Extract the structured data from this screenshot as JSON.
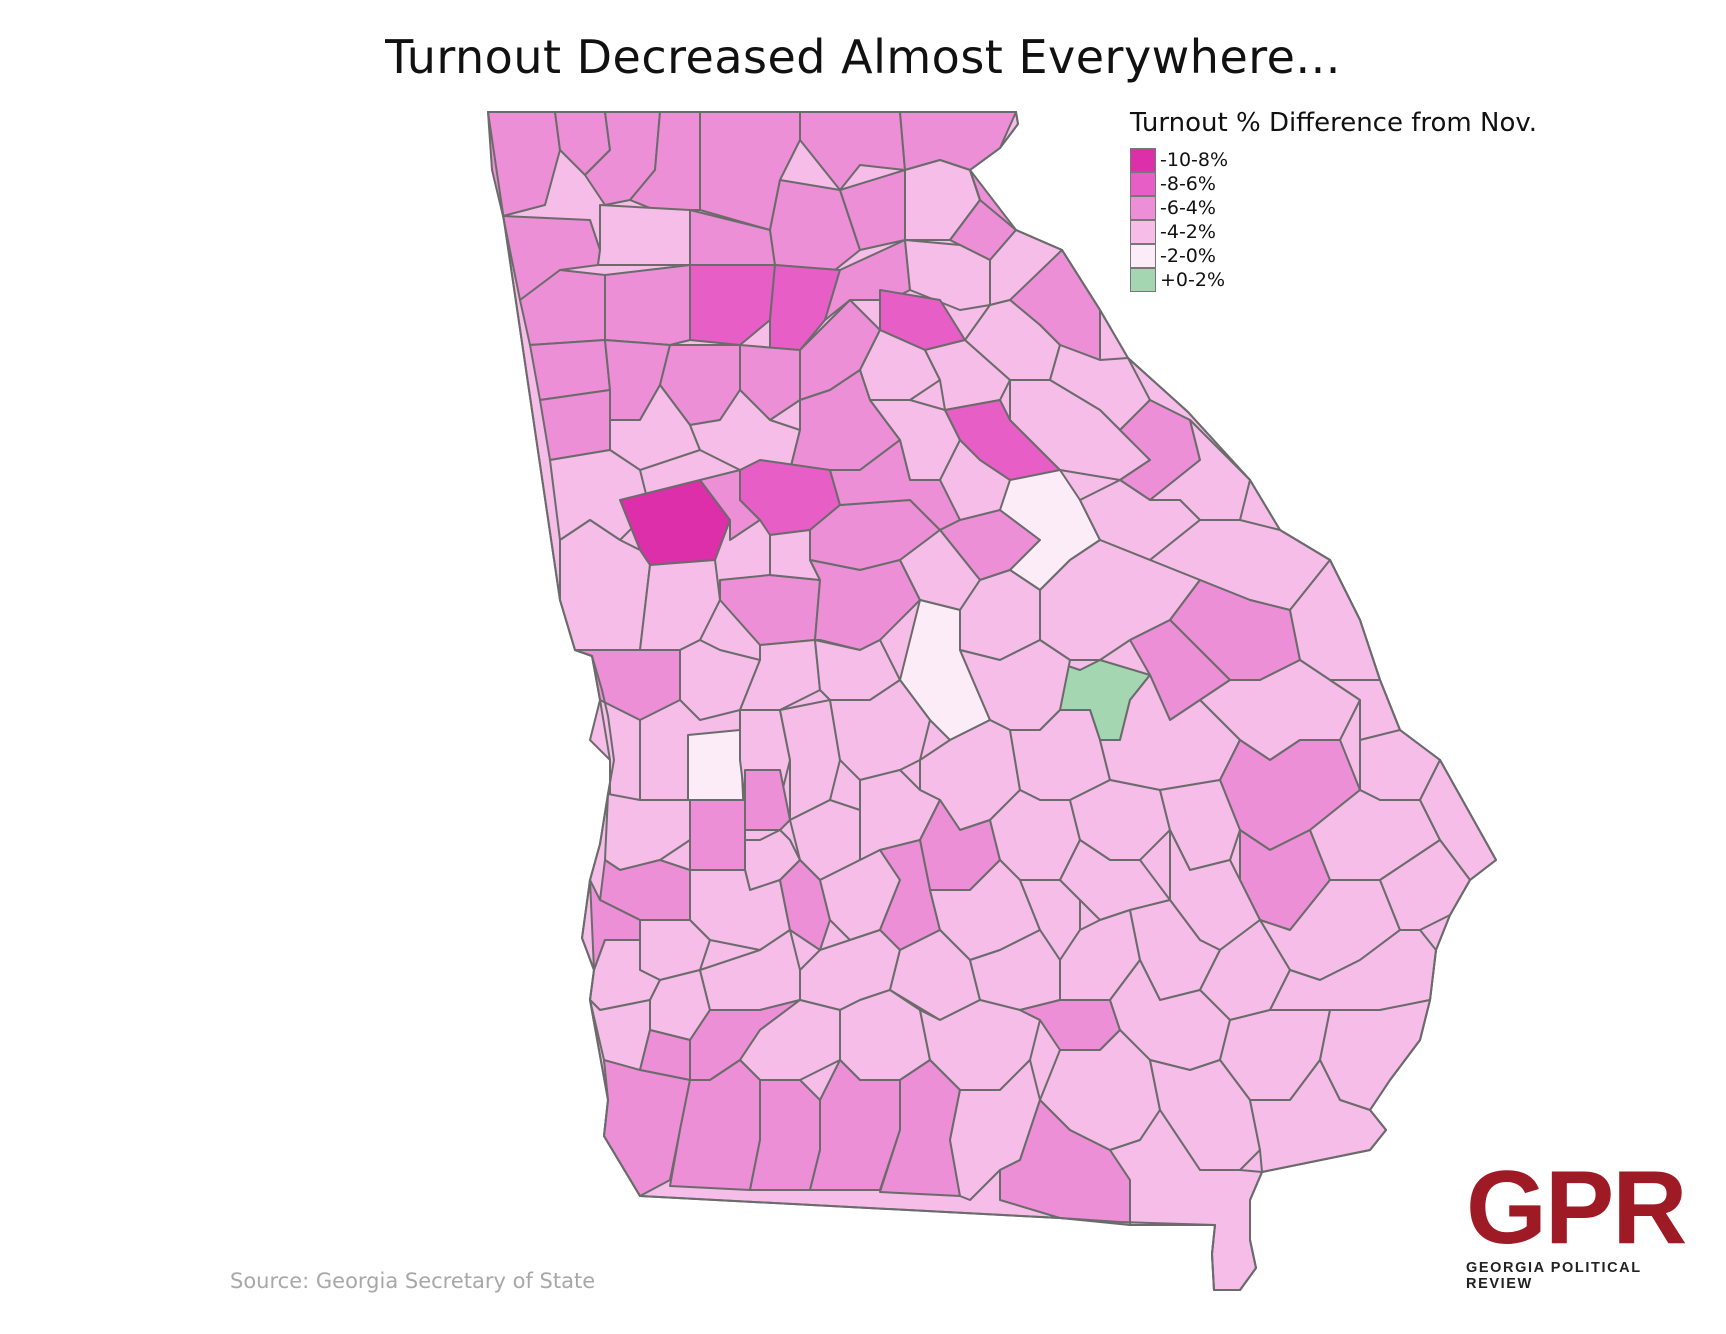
{
  "title": "Turnout Decreased Almost Everywhere...",
  "legend": {
    "title": "Turnout % Difference from Nov.",
    "items": [
      {
        "label": "-10-8%",
        "color": "#dc2fa9"
      },
      {
        "label": "-8-6%",
        "color": "#e75ec6"
      },
      {
        "label": "-6-4%",
        "color": "#ec8fd6"
      },
      {
        "label": "-4-2%",
        "color": "#f5bde8"
      },
      {
        "label": "-2-0%",
        "color": "#fcecf7"
      },
      {
        "label": "+0-2%",
        "color": "#a4d6b1"
      }
    ]
  },
  "source": "Source: Georgia Secretary of State",
  "logo": {
    "mark": "GPR",
    "sub": "GEORGIA POLITICAL REVIEW"
  },
  "colors": {
    "outline": "#6b6b6b",
    "brand": "#9e1b26"
  }
}
